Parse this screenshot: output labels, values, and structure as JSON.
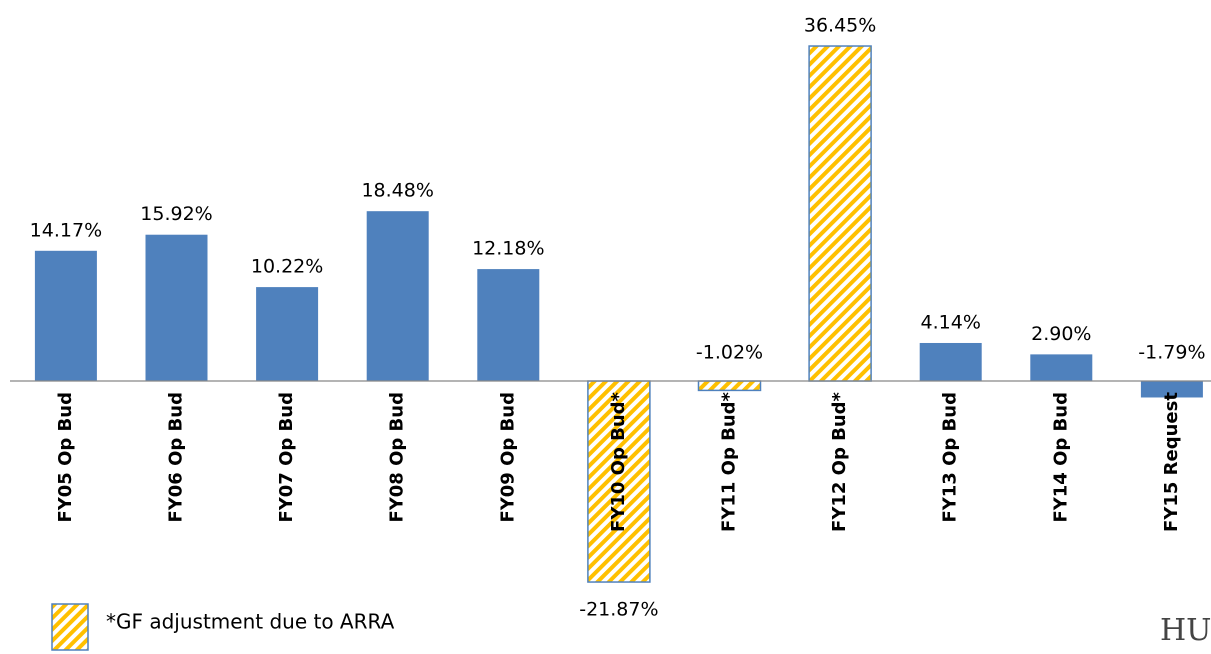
{
  "chart_data": {
    "type": "bar",
    "categories": [
      "FY05 Op Bud",
      "FY06 Op Bud",
      "FY07 Op Bud",
      "FY08 Op Bud",
      "FY09 Op Bud",
      "FY10 Op Bud*",
      "FY11 Op Bud*",
      "FY12 Op Bud*",
      "FY13 Op Bud",
      "FY14 Op Bud",
      "FY15 Request"
    ],
    "values": [
      14.17,
      15.92,
      10.22,
      18.48,
      12.18,
      -21.87,
      -1.02,
      36.45,
      4.14,
      2.9,
      -1.79
    ],
    "value_labels": [
      "14.17%",
      "15.92%",
      "10.22%",
      "18.48%",
      "12.18%",
      "-21.87%",
      "-1.02%",
      "36.45%",
      "4.14%",
      "2.90%",
      "-1.79%"
    ],
    "hatched": [
      false,
      false,
      false,
      false,
      false,
      true,
      true,
      true,
      false,
      false,
      false
    ],
    "color": "#4f81bd",
    "hatch_color": "#ffc000",
    "ylim": [
      -25,
      40
    ],
    "legend": {
      "label": "*GF adjustment due to ARRA",
      "pattern": "hatch"
    },
    "watermark": "HU"
  }
}
